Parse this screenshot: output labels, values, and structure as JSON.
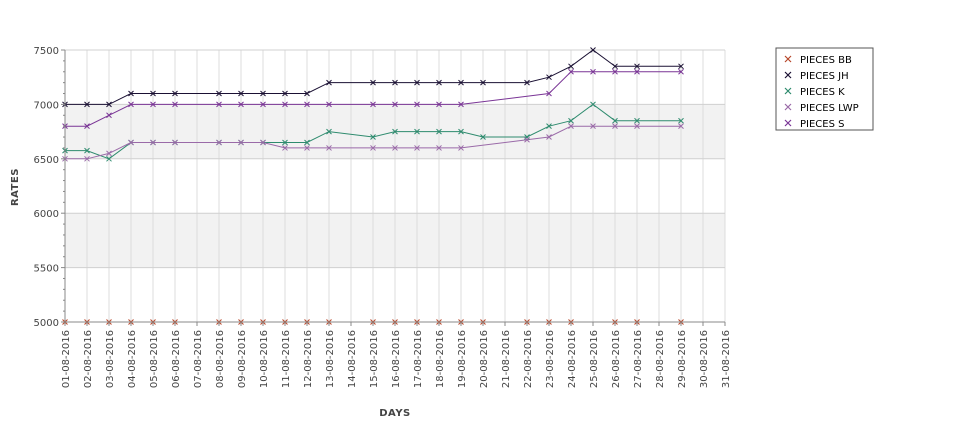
{
  "chart_data": {
    "type": "line",
    "xlabel": "DAYS",
    "ylabel": "RATES",
    "ylim": [
      5000,
      7500
    ],
    "yticks": [
      5000,
      5500,
      6000,
      6500,
      7000,
      7500
    ],
    "grid": true,
    "legend_position": "right",
    "categories": [
      "01-08-2016",
      "02-08-2016",
      "03-08-2016",
      "04-08-2016",
      "05-08-2016",
      "06-08-2016",
      "07-08-2016",
      "08-08-2016",
      "09-08-2016",
      "10-08-2016",
      "11-08-2016",
      "12-08-2016",
      "13-08-2016",
      "14-08-2016",
      "15-08-2016",
      "16-08-2016",
      "17-08-2016",
      "18-08-2016",
      "19-08-2016",
      "20-08-2016",
      "21-08-2016",
      "22-08-2016",
      "23-08-2016",
      "24-08-2016",
      "25-08-2016",
      "26-08-2016",
      "27-08-2016",
      "28-08-2016",
      "29-08-2016",
      "30-08-2016",
      "31-08-2016"
    ],
    "series": [
      {
        "name": "PIECES BB",
        "color": "#b7472a",
        "line": false,
        "values": [
          5000,
          5000,
          5000,
          5000,
          5000,
          5000,
          null,
          5000,
          5000,
          5000,
          5000,
          5000,
          5000,
          null,
          5000,
          5000,
          5000,
          5000,
          5000,
          5000,
          null,
          5000,
          5000,
          5000,
          null,
          5000,
          5000,
          null,
          5000,
          null,
          null
        ]
      },
      {
        "name": "PIECES JH",
        "color": "#1a1033",
        "line": true,
        "values": [
          7000,
          7000,
          7000,
          7100,
          7100,
          7100,
          null,
          7100,
          7100,
          7100,
          7100,
          7100,
          7200,
          null,
          7200,
          7200,
          7200,
          7200,
          7200,
          7200,
          null,
          7200,
          7250,
          7350,
          7500,
          7350,
          7350,
          null,
          7350,
          null,
          null
        ]
      },
      {
        "name": "PIECES K",
        "color": "#2e8b6e",
        "line": true,
        "values": [
          6575,
          6575,
          6500,
          6650,
          6650,
          6650,
          null,
          6650,
          6650,
          6650,
          6650,
          6650,
          6750,
          null,
          6700,
          6750,
          6750,
          6750,
          6750,
          6700,
          null,
          6700,
          6800,
          6850,
          7000,
          6850,
          6850,
          null,
          6850,
          null,
          null
        ]
      },
      {
        "name": "PIECES LWP",
        "color": "#9a6aa8",
        "line": true,
        "values": [
          6500,
          6500,
          6550,
          6650,
          6650,
          6650,
          null,
          6650,
          6650,
          6650,
          6600,
          6600,
          6600,
          null,
          6600,
          6600,
          6600,
          6600,
          6600,
          null,
          null,
          6675,
          6700,
          6800,
          6800,
          6800,
          6800,
          null,
          6800,
          null,
          null
        ]
      },
      {
        "name": "PIECES S",
        "color": "#7a3596",
        "line": true,
        "values": [
          6800,
          6800,
          6900,
          7000,
          7000,
          7000,
          null,
          7000,
          7000,
          7000,
          7000,
          7000,
          7000,
          null,
          7000,
          7000,
          7000,
          7000,
          7000,
          null,
          null,
          null,
          7100,
          7300,
          7300,
          7300,
          7300,
          null,
          7300,
          null,
          null
        ]
      }
    ]
  }
}
